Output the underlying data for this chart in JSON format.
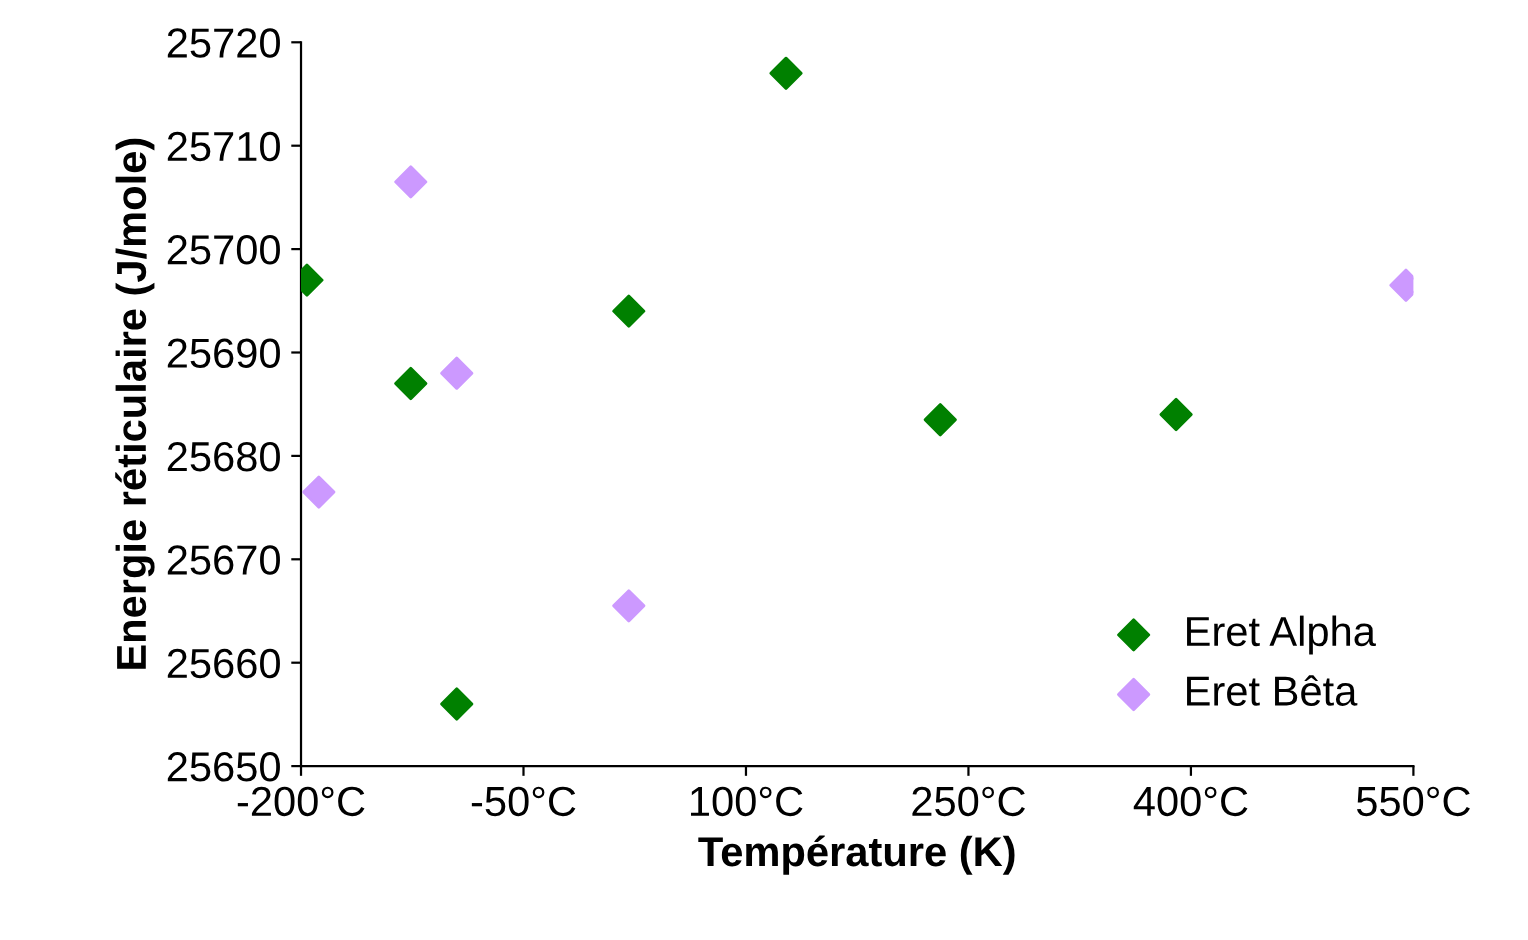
{
  "chart_data": {
    "type": "scatter",
    "xlabel": "Température (K)",
    "ylabel": "Energie réticulaire (J/mole)",
    "xlim": [
      -200,
      550
    ],
    "xticks": [
      {
        "value": -200,
        "label": "-200°C"
      },
      {
        "value": -50,
        "label": "-50°C"
      },
      {
        "value": 100,
        "label": "100°C"
      },
      {
        "value": 250,
        "label": "250°C"
      },
      {
        "value": 400,
        "label": "400°C"
      },
      {
        "value": 550,
        "label": "550°C"
      }
    ],
    "ylim": [
      25650,
      25720
    ],
    "yticks": [
      25650,
      25660,
      25670,
      25680,
      25690,
      25700,
      25710,
      25720
    ],
    "grid": false,
    "legend": "bottom right",
    "marker": "diamond",
    "series": [
      {
        "name": "Eret Alpha",
        "color": "#008000",
        "x": [
          -196,
          -126,
          -95,
          21,
          127,
          231,
          390
        ],
        "values": [
          25697,
          25687,
          25656,
          25694,
          25717,
          25683.5,
          25684
        ]
      },
      {
        "name": "Eret Bêta",
        "color": "#cc99ff",
        "x": [
          -188,
          -126,
          -95,
          21,
          545
        ],
        "values": [
          25676.5,
          25706.5,
          25688,
          25665.5,
          25696.5
        ]
      }
    ]
  }
}
